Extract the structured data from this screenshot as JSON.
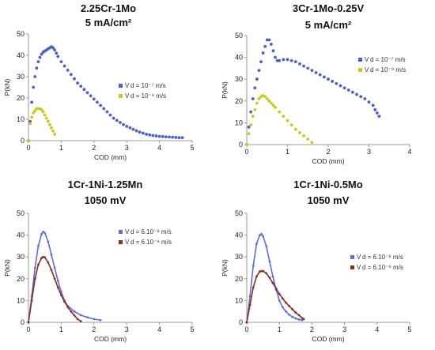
{
  "chart_data": [
    {
      "type": "scatter",
      "title_lines": [
        "2.25Cr-1Mo",
        "5 mA/cm²"
      ],
      "xlabel": "COD (mm)",
      "ylabel": "P(kN)",
      "xlim": [
        0,
        5
      ],
      "ylim": [
        0,
        50
      ],
      "xticks": [
        "0",
        "1",
        "2",
        "3",
        "4",
        "5"
      ],
      "yticks": [
        "0",
        "10",
        "20",
        "30",
        "40",
        "50"
      ],
      "grid": false,
      "legend": "center",
      "series": [
        {
          "name": "V d = 10⁻⁷ m/s",
          "color": "#4a5fcf",
          "style": "markers",
          "x": [
            0,
            0.05,
            0.1,
            0.15,
            0.2,
            0.25,
            0.3,
            0.35,
            0.4,
            0.45,
            0.5,
            0.55,
            0.6,
            0.65,
            0.7,
            0.75,
            0.8,
            0.85,
            0.9,
            1.0,
            1.1,
            1.2,
            1.3,
            1.4,
            1.5,
            1.6,
            1.7,
            1.8,
            1.9,
            2.0,
            2.1,
            2.2,
            2.3,
            2.4,
            2.5,
            2.6,
            2.7,
            2.8,
            2.9,
            3.0,
            3.1,
            3.2,
            3.3,
            3.4,
            3.5,
            3.6,
            3.7,
            3.8,
            3.9,
            4.0,
            4.1,
            4.2,
            4.3,
            4.4,
            4.5,
            4.6,
            4.7
          ],
          "y": [
            0,
            9,
            18,
            25,
            30,
            34,
            37,
            39,
            40.5,
            41.5,
            42,
            42.5,
            43,
            43.5,
            44,
            43.5,
            42.5,
            41,
            39.5,
            37,
            35,
            33,
            31,
            29,
            27,
            25.5,
            24,
            22.5,
            21,
            19.5,
            18,
            16.5,
            15,
            13.5,
            12,
            10.5,
            9.5,
            8.5,
            7.5,
            6.7,
            6,
            5.3,
            4.6,
            4,
            3.5,
            3,
            2.7,
            2.4,
            2.2,
            2,
            1.9,
            1.8,
            1.7,
            1.6,
            1.5,
            1.4,
            1.4
          ]
        },
        {
          "name": "V d = 10⁻⁹ m/s",
          "color": "#c9c820",
          "style": "markers",
          "x": [
            0,
            0.05,
            0.1,
            0.15,
            0.2,
            0.25,
            0.3,
            0.35,
            0.4,
            0.45,
            0.5,
            0.55,
            0.6,
            0.65,
            0.7,
            0.75,
            0.8
          ],
          "y": [
            0,
            8,
            11,
            13,
            14,
            15,
            15,
            15,
            14.5,
            13.5,
            12,
            10.5,
            9,
            7.5,
            6,
            4.5,
            3
          ]
        }
      ]
    },
    {
      "type": "scatter",
      "title_lines": [
        "3Cr-1Mo-0.25V",
        "5 mA/cm²"
      ],
      "xlabel": "COD (mm)",
      "ylabel": "P(kN)",
      "xlim": [
        0,
        4
      ],
      "ylim": [
        0,
        50
      ],
      "xticks": [
        "0",
        "1",
        "2",
        "3",
        "4"
      ],
      "yticks": [
        "0",
        "10",
        "20",
        "30",
        "40",
        "50"
      ],
      "grid": false,
      "legend": "right",
      "series": [
        {
          "name": "V d = 10⁻⁷ m/s",
          "color": "#4a5fcf",
          "style": "markers",
          "x": [
            0,
            0.05,
            0.1,
            0.15,
            0.2,
            0.25,
            0.3,
            0.35,
            0.4,
            0.45,
            0.5,
            0.55,
            0.6,
            0.65,
            0.7,
            0.75,
            0.8,
            0.9,
            1.0,
            1.1,
            1.2,
            1.3,
            1.4,
            1.5,
            1.6,
            1.7,
            1.8,
            1.9,
            2.0,
            2.1,
            2.2,
            2.3,
            2.4,
            2.5,
            2.6,
            2.7,
            2.8,
            2.9,
            3.0,
            3.1,
            3.15,
            3.2,
            3.25
          ],
          "y": [
            0,
            8,
            15,
            21,
            26,
            30,
            34,
            38,
            42,
            45,
            48,
            48,
            46,
            43,
            40,
            38.5,
            38.5,
            39,
            39,
            38.5,
            38,
            37,
            36,
            35,
            34,
            33,
            32,
            31,
            30,
            29,
            28,
            27,
            26,
            25,
            24,
            23,
            22,
            21,
            19.5,
            18,
            16,
            14.5,
            13
          ]
        },
        {
          "name": "V d = 10⁻⁹ m/s",
          "color": "#c9c820",
          "style": "markers",
          "x": [
            0,
            0.05,
            0.1,
            0.15,
            0.2,
            0.25,
            0.3,
            0.35,
            0.4,
            0.45,
            0.5,
            0.55,
            0.6,
            0.65,
            0.7,
            0.8,
            0.9,
            1.0,
            1.1,
            1.2,
            1.3,
            1.4,
            1.5,
            1.6
          ],
          "y": [
            0,
            5,
            9,
            13,
            16,
            19,
            21,
            22,
            22.5,
            22,
            21,
            20,
            19,
            18,
            17,
            15,
            13,
            11,
            9,
            7,
            5.5,
            4,
            2.5,
            1
          ]
        }
      ]
    },
    {
      "type": "line",
      "title_lines": [
        "1Cr-1Ni-1.25Mn",
        "1050 mV"
      ],
      "xlabel": "COD (mm)",
      "ylabel": "P(kN)",
      "xlim": [
        0,
        5
      ],
      "ylim": [
        0,
        50
      ],
      "xticks": [
        "0",
        "1",
        "2",
        "3",
        "4",
        "5"
      ],
      "yticks": [
        "0",
        "10",
        "20",
        "30",
        "40",
        "50"
      ],
      "grid": false,
      "legend": "right",
      "series": [
        {
          "name": "V d = 6.10⁻⁸ m/s",
          "color": "#5a6fd8",
          "style": "line-markers",
          "x": [
            0,
            0.1,
            0.2,
            0.3,
            0.4,
            0.45,
            0.5,
            0.6,
            0.7,
            0.8,
            0.9,
            1.0,
            1.1,
            1.2,
            1.4,
            1.6,
            1.8,
            2.0,
            2.2
          ],
          "y": [
            0,
            12,
            25,
            35,
            40.5,
            41.5,
            41,
            37,
            31,
            25,
            19,
            14,
            10,
            7.5,
            5,
            3.3,
            2.3,
            1.5,
            1
          ]
        },
        {
          "name": "V d = 6.10⁻⁹ m/s",
          "color": "#8b2e22",
          "style": "line-markers",
          "x": [
            0,
            0.1,
            0.2,
            0.3,
            0.4,
            0.45,
            0.5,
            0.6,
            0.7,
            0.8,
            0.9,
            1.0,
            1.1,
            1.2,
            1.3,
            1.4,
            1.5,
            1.6
          ],
          "y": [
            0,
            10,
            20,
            26.5,
            29.5,
            30,
            29.8,
            27.5,
            24,
            20,
            16,
            12.5,
            9.5,
            7,
            5,
            3.2,
            1.5,
            0.5
          ]
        }
      ]
    },
    {
      "type": "line",
      "title_lines": [
        "1Cr-1Ni-0.5Mo",
        "1050 mV"
      ],
      "xlabel": "COD (mm)",
      "ylabel": "P(kN)",
      "xlim": [
        0,
        5
      ],
      "ylim": [
        0,
        50
      ],
      "xticks": [
        "0",
        "1",
        "2",
        "3",
        "4",
        "5"
      ],
      "yticks": [
        "0",
        "10",
        "20",
        "30",
        "40",
        "50"
      ],
      "grid": false,
      "legend": "right",
      "series": [
        {
          "name": "V d = 6.10⁻⁸ m/s",
          "color": "#5a6fd8",
          "style": "line-markers",
          "x": [
            0,
            0.1,
            0.2,
            0.3,
            0.4,
            0.45,
            0.5,
            0.6,
            0.7,
            0.8,
            0.9,
            1.0,
            1.1,
            1.2,
            1.3,
            1.4,
            1.5,
            1.6,
            1.7
          ],
          "y": [
            0,
            12,
            26,
            36,
            40,
            40.5,
            39.5,
            35,
            28,
            21,
            15,
            10,
            7,
            5,
            3.5,
            2.5,
            1.8,
            1.3,
            1
          ]
        },
        {
          "name": "V d = 6.10⁻⁹ m/s",
          "color": "#8b2e22",
          "style": "line-markers",
          "x": [
            0,
            0.1,
            0.2,
            0.3,
            0.4,
            0.45,
            0.5,
            0.6,
            0.7,
            0.8,
            0.9,
            1.0,
            1.1,
            1.2,
            1.3,
            1.4,
            1.5,
            1.6,
            1.7,
            1.75
          ],
          "y": [
            0,
            8,
            16,
            21,
            23.3,
            23.5,
            23.5,
            22.5,
            20.5,
            18,
            15.5,
            13,
            11,
            9,
            7.5,
            6,
            4.5,
            3.3,
            2,
            1.5
          ]
        }
      ]
    }
  ]
}
